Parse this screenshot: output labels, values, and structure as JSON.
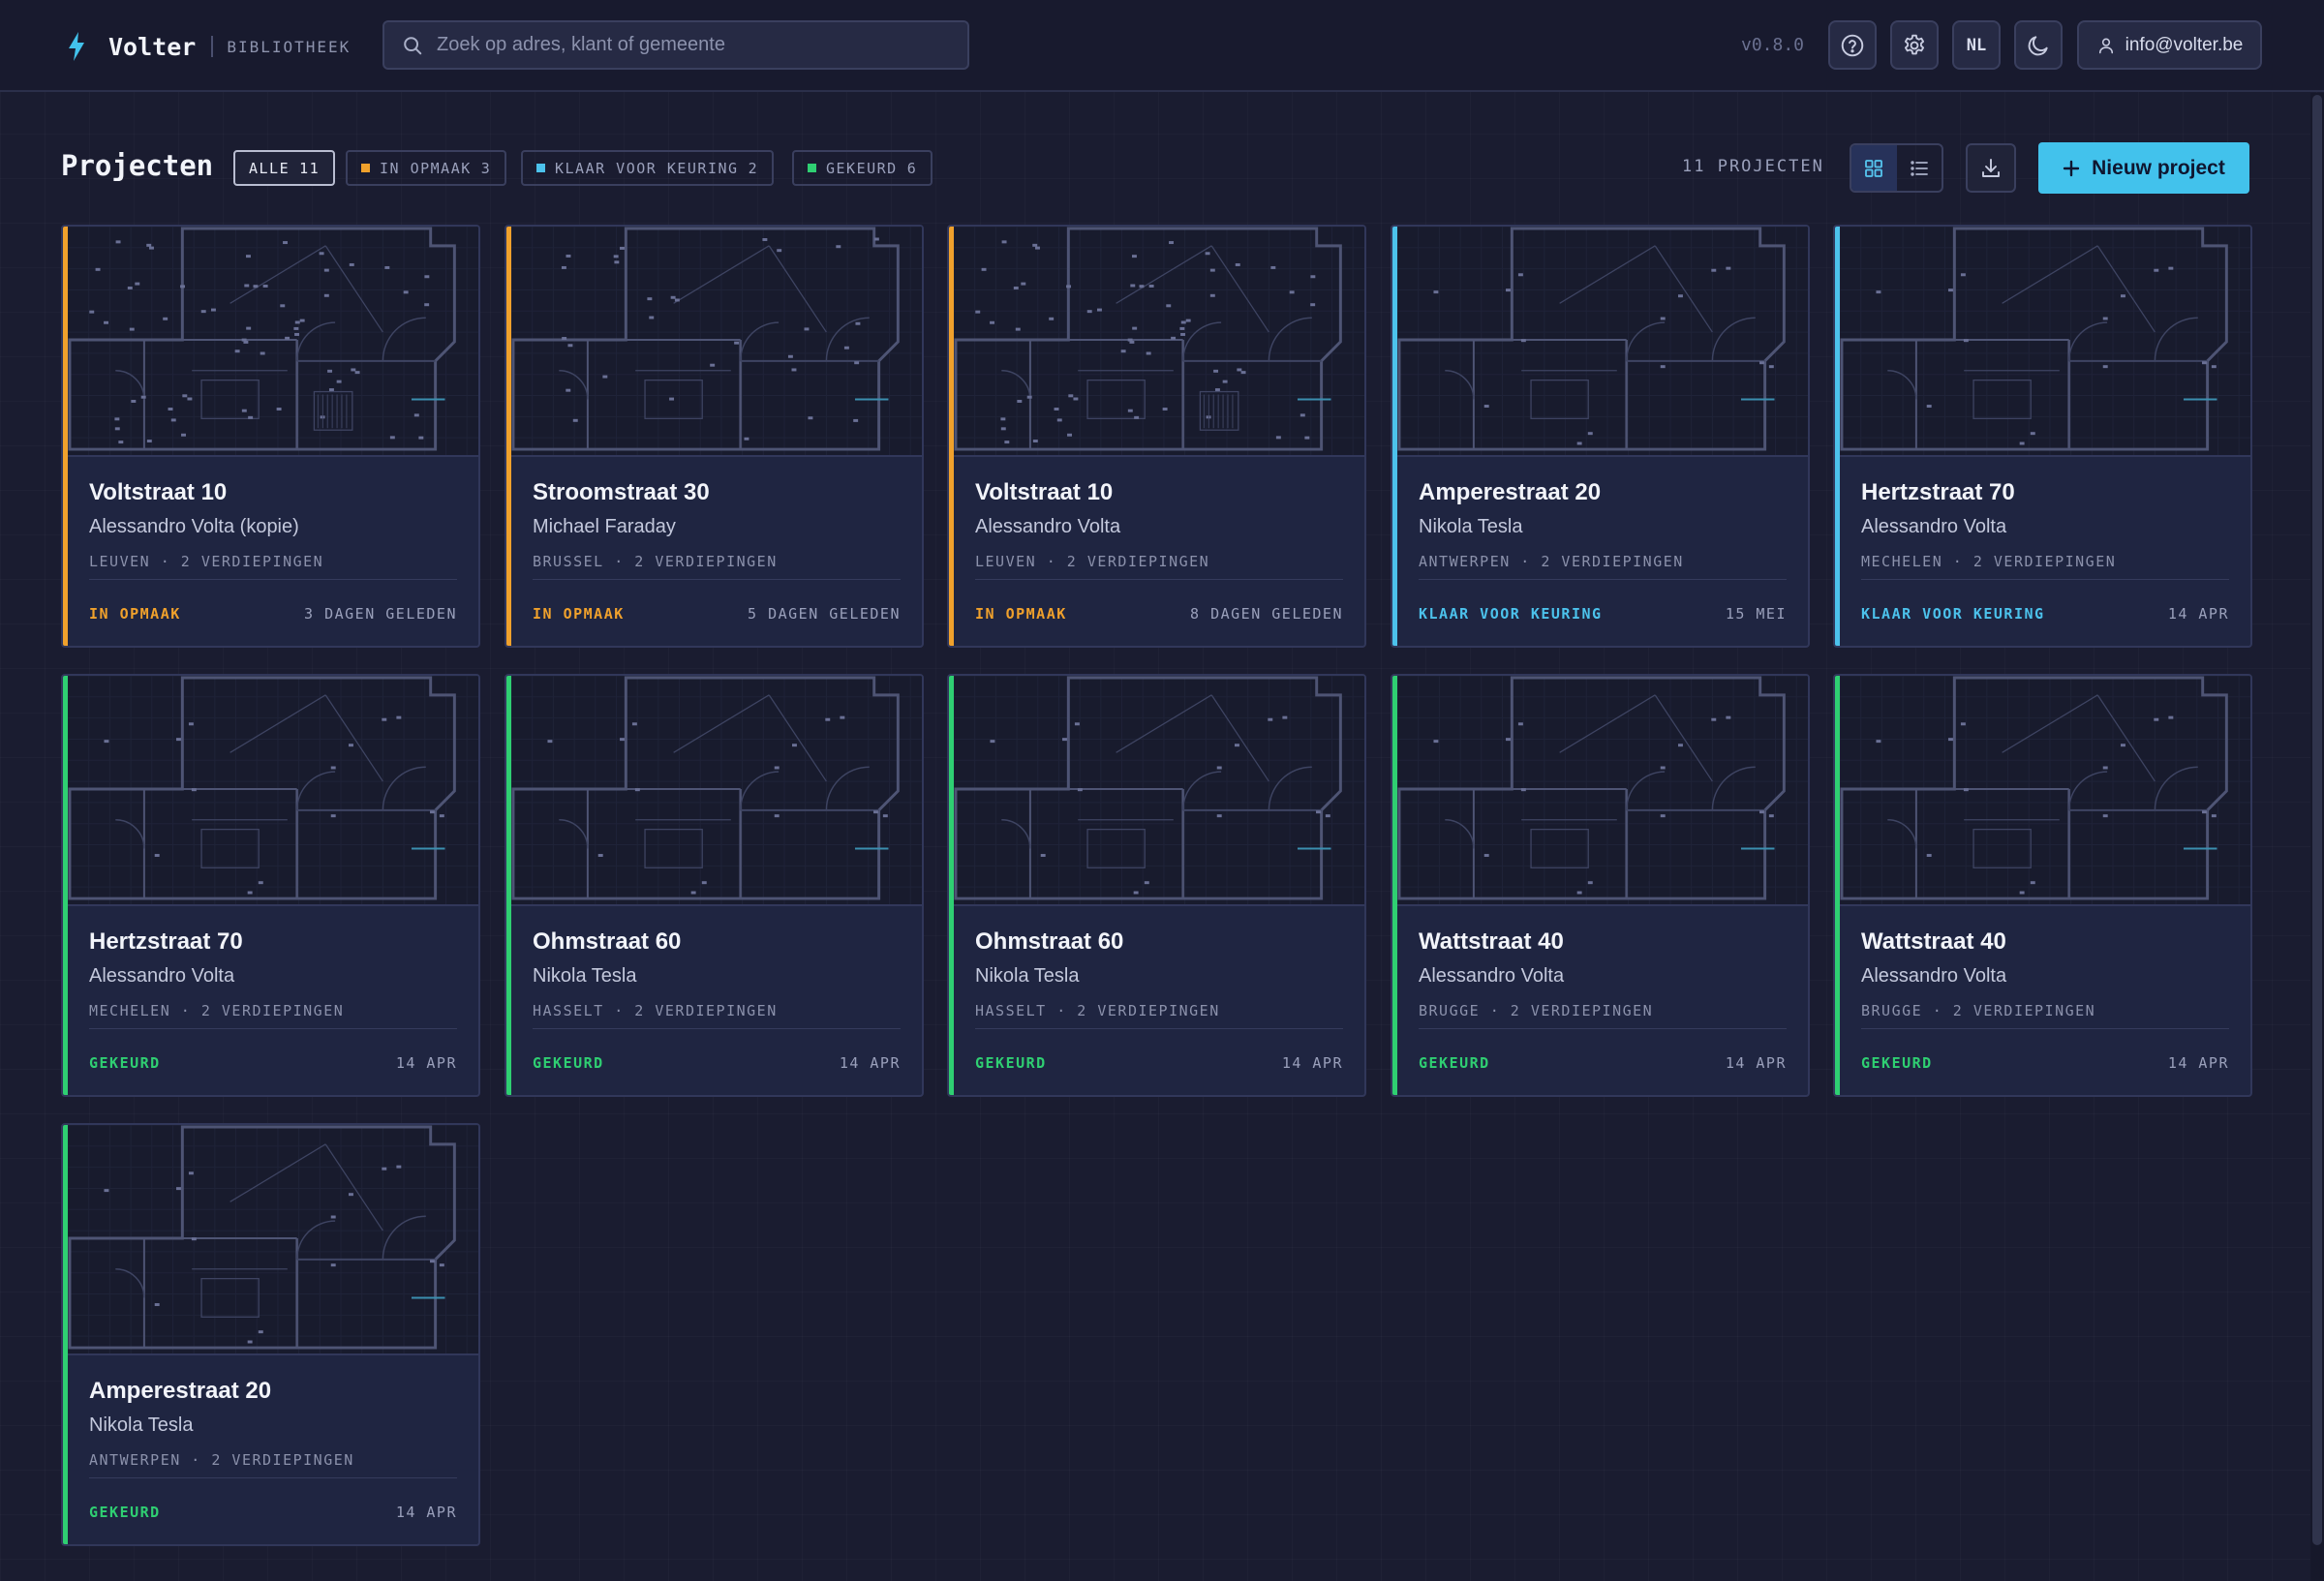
{
  "app": {
    "brand": "Volter",
    "section": "BIBLIOTHEEK",
    "version": "v0.8.0",
    "language": "NL",
    "user_email": "info@volter.be",
    "accent_color": "#42c2ec"
  },
  "search": {
    "placeholder": "Zoek op adres, klant of gemeente",
    "value": ""
  },
  "toolbar": {
    "title": "Projecten",
    "filters": [
      {
        "label": "ALLE",
        "count": "11",
        "active": true
      },
      {
        "label": "IN OPMAAK",
        "count": "3",
        "color": "#f0a12c"
      },
      {
        "label": "KLAAR VOOR KEURING",
        "count": "2",
        "color": "#4cc2ec"
      },
      {
        "label": "GEKEURD",
        "count": "6",
        "color": "#2fcf72"
      }
    ],
    "count_label": "11 PROJECTEN",
    "view_mode": "grid",
    "new_project_label": "Nieuw project"
  },
  "icons": {
    "brand": "lightning-bolt-icon",
    "search": "search-icon",
    "help": "help-circle-icon",
    "settings": "gear-icon",
    "theme": "moon-icon",
    "user": "user-icon",
    "grid": "grid-view-icon",
    "list": "list-view-icon",
    "download": "download-icon",
    "add": "plus-icon"
  },
  "status_colors": {
    "in_opmaak": "#f0a12c",
    "klaar": "#4cc2ec",
    "gekeurd": "#2fcf72"
  },
  "projects": [
    {
      "title": "Voltstraat 10",
      "client": "Alessandro Volta (kopie)",
      "meta": "LEUVEN · 2 VERDIEPINGEN",
      "status": "IN OPMAAK",
      "status_key": "in_opmaak",
      "date": "3 DAGEN GELEDEN",
      "plan": "dense"
    },
    {
      "title": "Stroomstraat 30",
      "client": "Michael Faraday",
      "meta": "BRUSSEL · 2 VERDIEPINGEN",
      "status": "IN OPMAAK",
      "status_key": "in_opmaak",
      "date": "5 DAGEN GELEDEN",
      "plan": "medium"
    },
    {
      "title": "Voltstraat 10",
      "client": "Alessandro Volta",
      "meta": "LEUVEN · 2 VERDIEPINGEN",
      "status": "IN OPMAAK",
      "status_key": "in_opmaak",
      "date": "8 DAGEN GELEDEN",
      "plan": "dense"
    },
    {
      "title": "Amperestraat 20",
      "client": "Nikola Tesla",
      "meta": "ANTWERPEN · 2 VERDIEPINGEN",
      "status": "KLAAR VOOR KEURING",
      "status_key": "klaar",
      "date": "15 MEI",
      "plan": "simple"
    },
    {
      "title": "Hertzstraat 70",
      "client": "Alessandro Volta",
      "meta": "MECHELEN · 2 VERDIEPINGEN",
      "status": "KLAAR VOOR KEURING",
      "status_key": "klaar",
      "date": "14 APR",
      "plan": "simple"
    },
    {
      "title": "Hertzstraat 70",
      "client": "Alessandro Volta",
      "meta": "MECHELEN · 2 VERDIEPINGEN",
      "status": "GEKEURD",
      "status_key": "gekeurd",
      "date": "14 APR",
      "plan": "simple"
    },
    {
      "title": "Ohmstraat 60",
      "client": "Nikola Tesla",
      "meta": "HASSELT · 2 VERDIEPINGEN",
      "status": "GEKEURD",
      "status_key": "gekeurd",
      "date": "14 APR",
      "plan": "simple"
    },
    {
      "title": "Ohmstraat 60",
      "client": "Nikola Tesla",
      "meta": "HASSELT · 2 VERDIEPINGEN",
      "status": "GEKEURD",
      "status_key": "gekeurd",
      "date": "14 APR",
      "plan": "simple"
    },
    {
      "title": "Wattstraat 40",
      "client": "Alessandro Volta",
      "meta": "BRUGGE · 2 VERDIEPINGEN",
      "status": "GEKEURD",
      "status_key": "gekeurd",
      "date": "14 APR",
      "plan": "simple"
    },
    {
      "title": "Wattstraat 40",
      "client": "Alessandro Volta",
      "meta": "BRUGGE · 2 VERDIEPINGEN",
      "status": "GEKEURD",
      "status_key": "gekeurd",
      "date": "14 APR",
      "plan": "simple"
    },
    {
      "title": "Amperestraat 20",
      "client": "Nikola Tesla",
      "meta": "ANTWERPEN · 2 VERDIEPINGEN",
      "status": "GEKEURD",
      "status_key": "gekeurd",
      "date": "14 APR",
      "plan": "simple"
    }
  ]
}
